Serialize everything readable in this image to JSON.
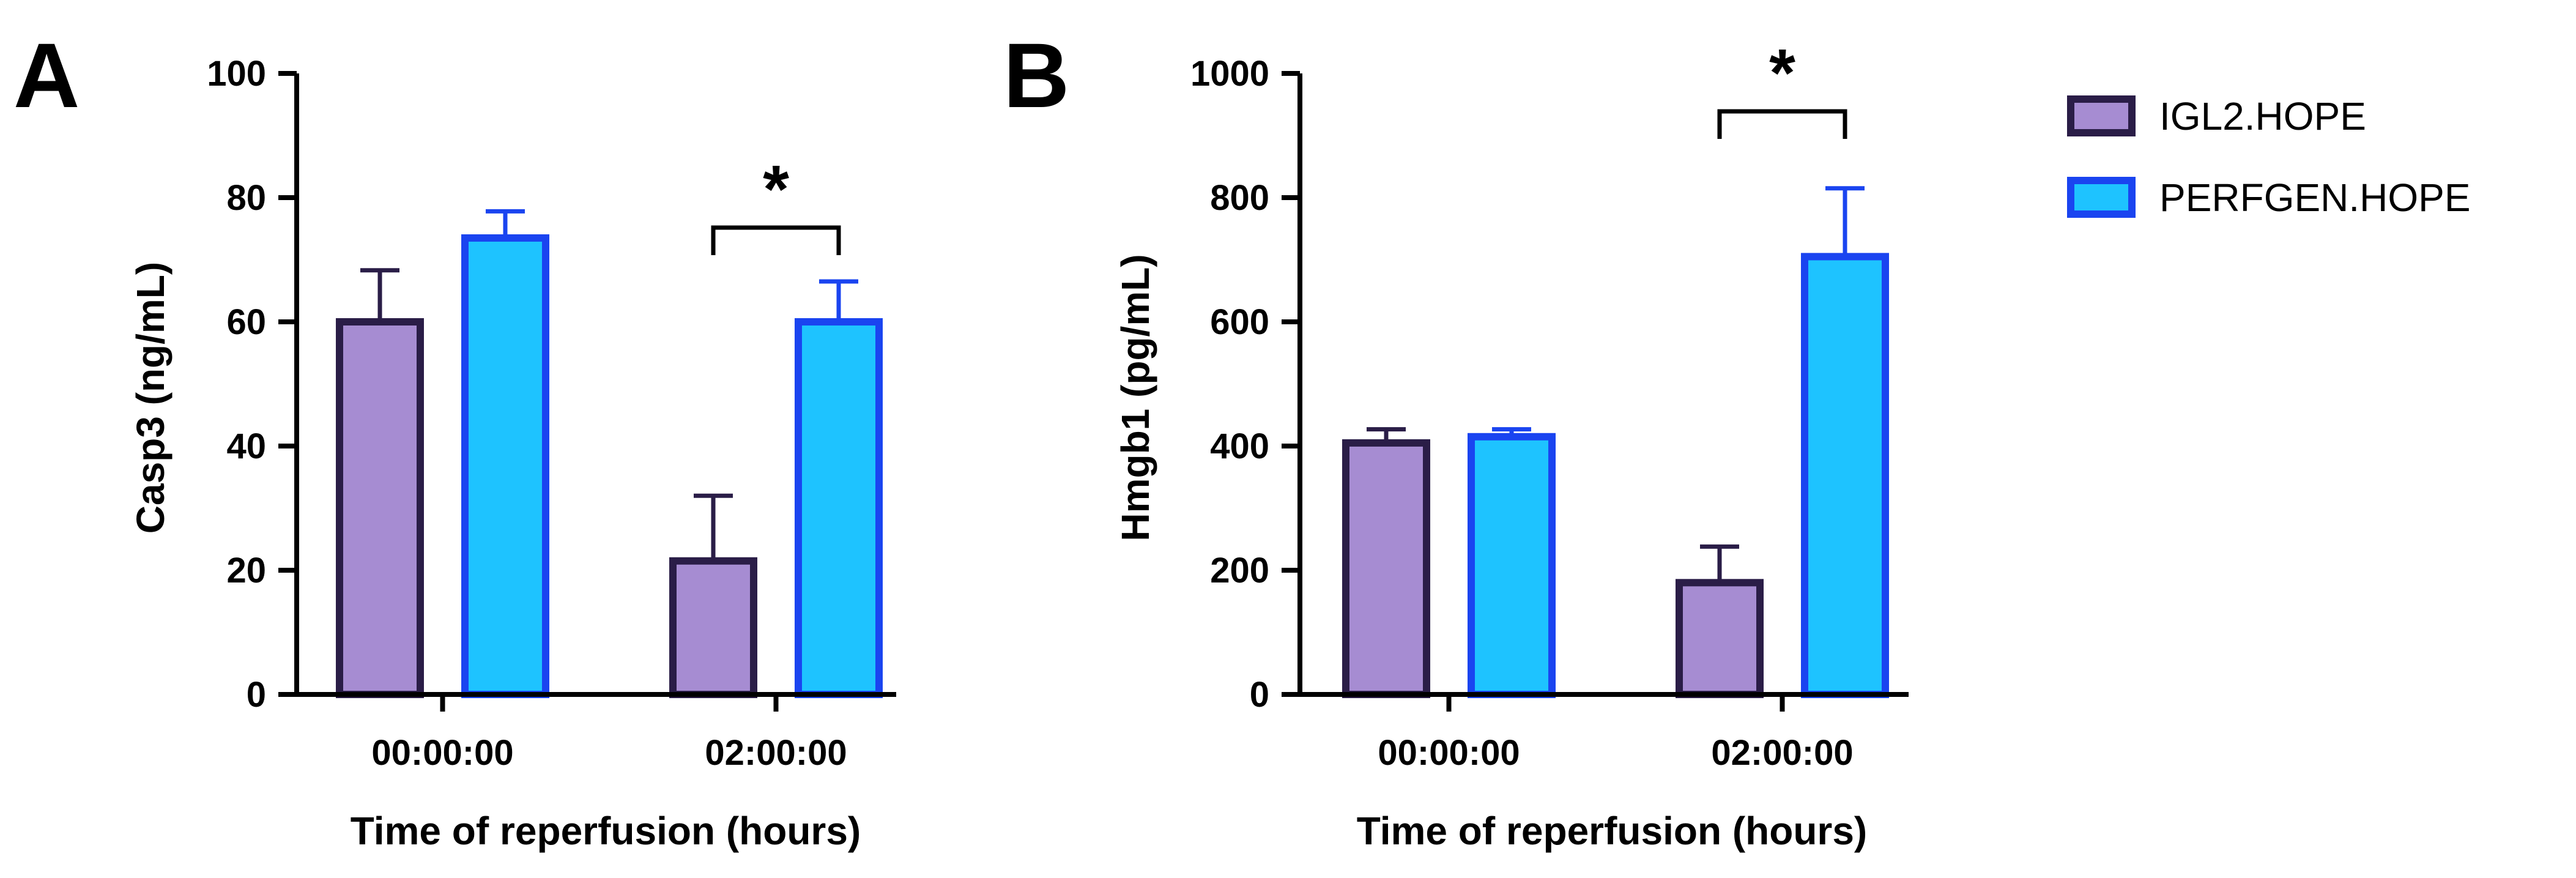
{
  "colors": {
    "series_fill": [
      "#a68cd2",
      "#1ec3ff"
    ],
    "series_stroke": [
      "#2a1d47",
      "#1a44f0"
    ],
    "axis": "#000000"
  },
  "legend": [
    {
      "label": "IGL2.HOPE"
    },
    {
      "label": "PERFGEN.HOPE"
    }
  ],
  "chart_data": [
    {
      "panel": "A",
      "type": "bar",
      "title": "",
      "xlabel": "Time of reperfusion (hours)",
      "ylabel": "Casp3 (ng/mL)",
      "ylim": [
        0,
        100
      ],
      "yticks": [
        "0",
        "20",
        "40",
        "60",
        "80",
        "100"
      ],
      "categories": [
        "00:00:00",
        "02:00:00"
      ],
      "series": [
        {
          "name": "IGL2.HOPE",
          "values": [
            60,
            21.5
          ],
          "errors": [
            8.3,
            10.5
          ]
        },
        {
          "name": "PERFGEN.HOPE",
          "values": [
            73.5,
            60
          ],
          "errors": [
            4.3,
            6.5
          ]
        }
      ],
      "significance": [
        {
          "category_index": 1,
          "label": "*"
        }
      ]
    },
    {
      "panel": "B",
      "type": "bar",
      "title": "",
      "xlabel": "Time of reperfusion (hours)",
      "ylabel": "Hmgb1 (pg/mL)",
      "ylim": [
        0,
        1000
      ],
      "yticks": [
        "0",
        "200",
        "400",
        "600",
        "800",
        "1000"
      ],
      "categories": [
        "00:00:00",
        "02:00:00"
      ],
      "series": [
        {
          "name": "IGL2.HOPE",
          "values": [
            405,
            180
          ],
          "errors": [
            22,
            58
          ]
        },
        {
          "name": "PERFGEN.HOPE",
          "values": [
            415,
            705
          ],
          "errors": [
            12,
            110
          ]
        }
      ],
      "significance": [
        {
          "category_index": 1,
          "label": "*"
        }
      ]
    }
  ]
}
